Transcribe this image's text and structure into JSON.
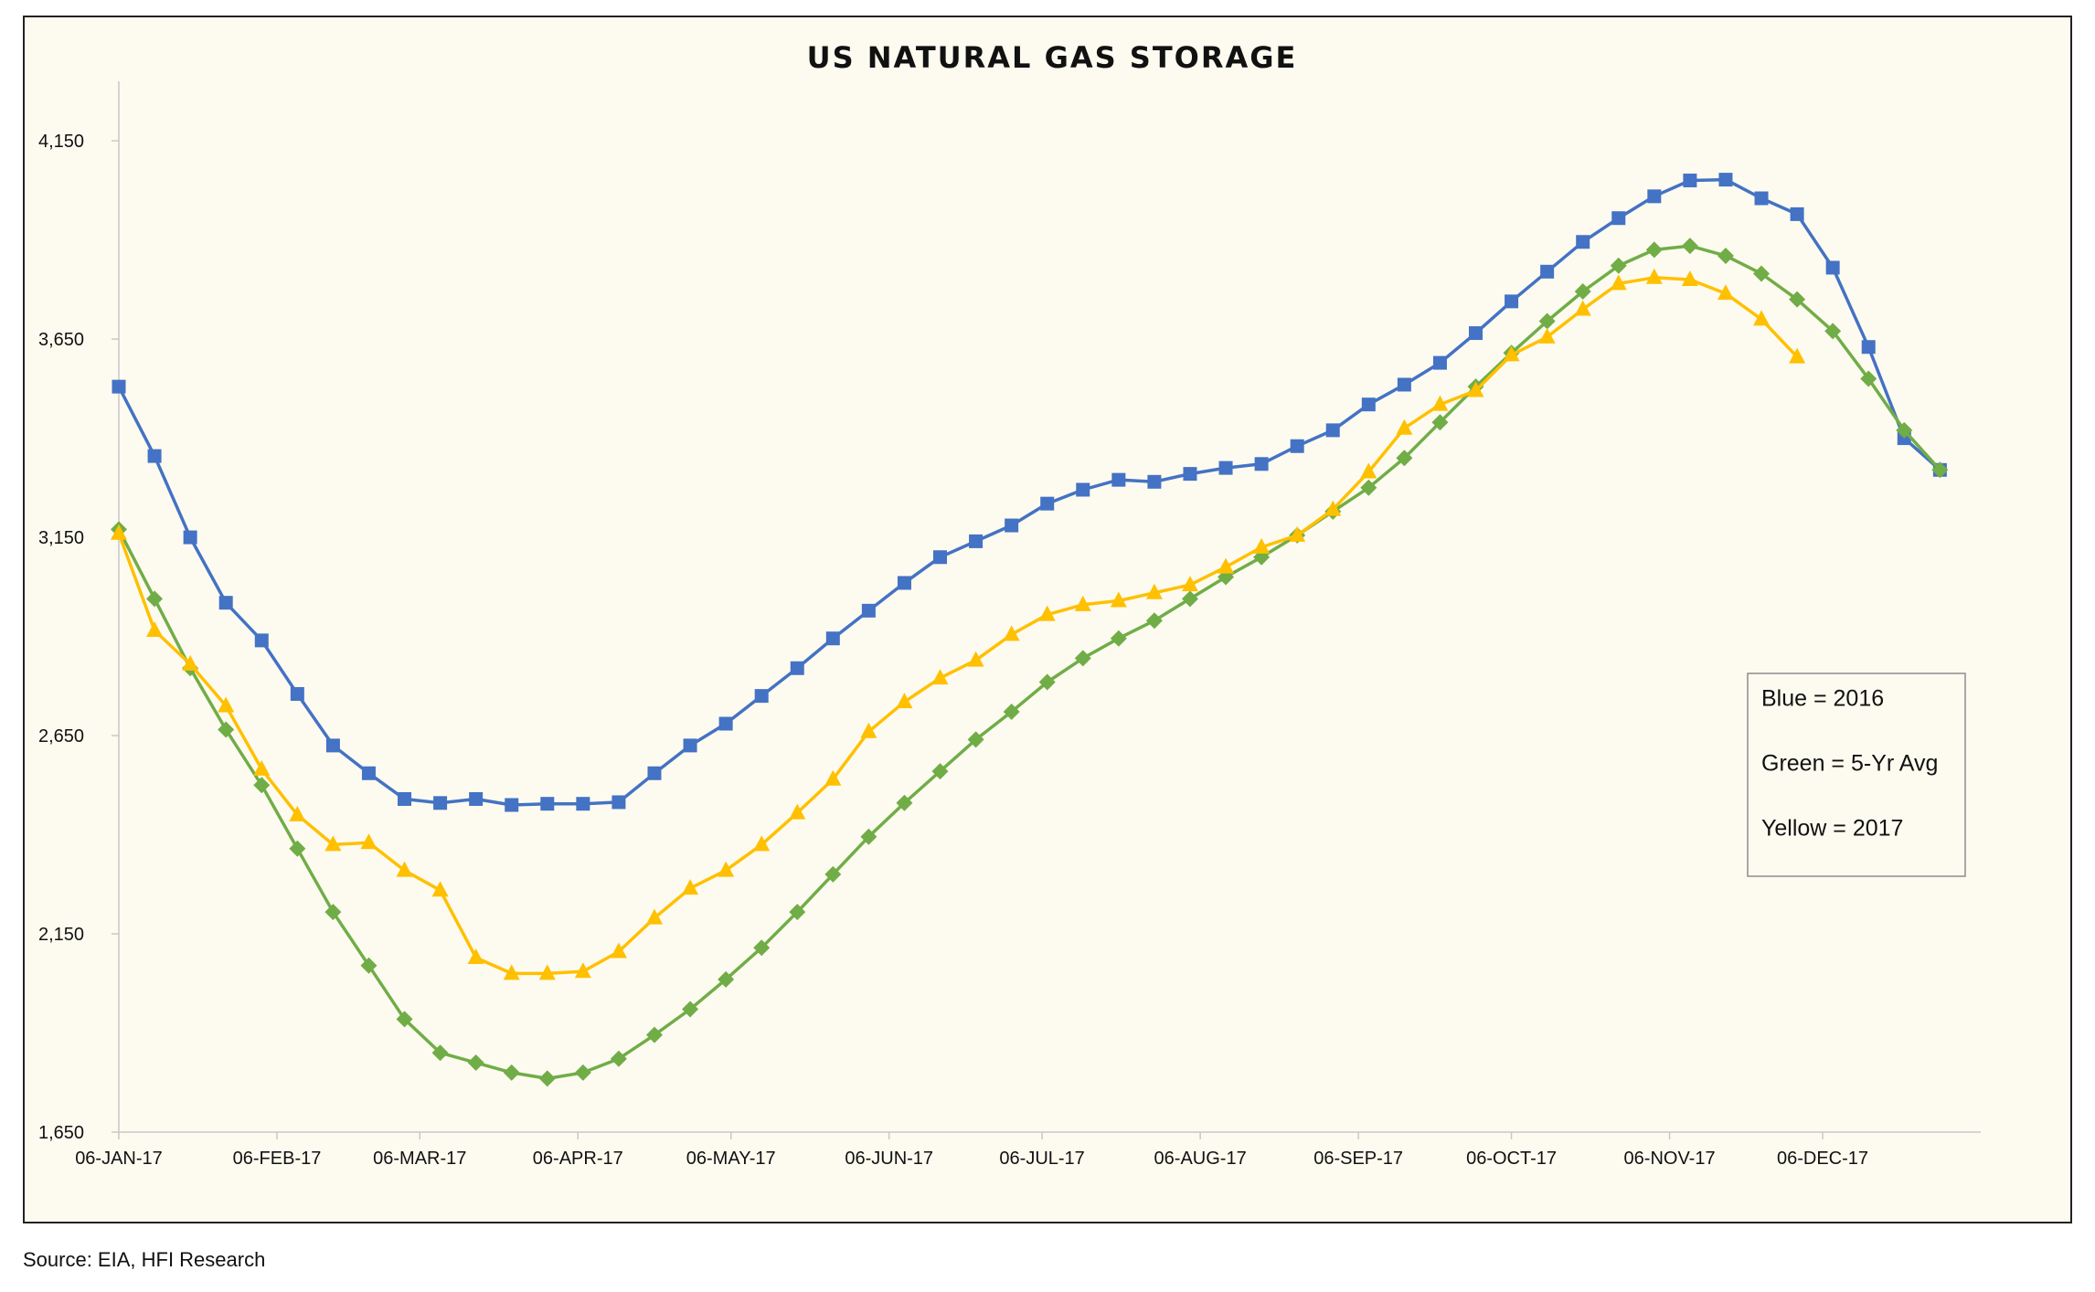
{
  "chart_data": {
    "type": "line",
    "title": "US NATURAL GAS STORAGE",
    "xlabel": "",
    "ylabel": "",
    "ylim": [
      1650,
      4300
    ],
    "yticks": [
      "1,650",
      "2,150",
      "2,650",
      "3,150",
      "3,650",
      "4,150"
    ],
    "ytick_values": [
      1650,
      2150,
      2650,
      3150,
      3650,
      4150
    ],
    "x_dates": [
      "06-JAN-17",
      "13-JAN-17",
      "20-JAN-17",
      "27-JAN-17",
      "03-FEB-17",
      "10-FEB-17",
      "17-FEB-17",
      "24-FEB-17",
      "03-MAR-17",
      "10-MAR-17",
      "17-MAR-17",
      "24-MAR-17",
      "31-MAR-17",
      "07-APR-17",
      "14-APR-17",
      "21-APR-17",
      "28-APR-17",
      "05-MAY-17",
      "12-MAY-17",
      "19-MAY-17",
      "26-MAY-17",
      "02-JUN-17",
      "09-JUN-17",
      "16-JUN-17",
      "23-JUN-17",
      "30-JUN-17",
      "07-JUL-17",
      "14-JUL-17",
      "21-JUL-17",
      "28-JUL-17",
      "04-AUG-17",
      "11-AUG-17",
      "18-AUG-17",
      "25-AUG-17",
      "01-SEP-17",
      "08-SEP-17",
      "15-SEP-17",
      "22-SEP-17",
      "29-SEP-17",
      "06-OCT-17",
      "13-OCT-17",
      "20-OCT-17",
      "27-OCT-17",
      "03-NOV-17",
      "10-NOV-17",
      "17-NOV-17",
      "24-NOV-17",
      "01-DEC-17",
      "08-DEC-17",
      "15-DEC-17",
      "22-DEC-17",
      "29-DEC-17"
    ],
    "x_start": "06-JAN-17",
    "x_end": "06-JAN-18",
    "xticks": [
      "06-JAN-17",
      "06-FEB-17",
      "06-MAR-17",
      "06-APR-17",
      "06-MAY-17",
      "06-JUN-17",
      "06-JUL-17",
      "06-AUG-17",
      "06-SEP-17",
      "06-OCT-17",
      "06-NOV-17",
      "06-DEC-17"
    ],
    "series": [
      {
        "name": "Blue = 2016",
        "color": "#4472c4",
        "marker": "square",
        "values": [
          3530,
          3355,
          3150,
          2985,
          2890,
          2755,
          2625,
          2555,
          2490,
          2480,
          2490,
          2475,
          2478,
          2478,
          2482,
          2555,
          2625,
          2680,
          2750,
          2820,
          2895,
          2965,
          3035,
          3100,
          3140,
          3180,
          3235,
          3270,
          3295,
          3290,
          3310,
          3325,
          3335,
          3380,
          3420,
          3485,
          3535,
          3590,
          3665,
          3745,
          3820,
          3895,
          3955,
          4010,
          4050,
          4052,
          4005,
          3965,
          3830,
          3630,
          3400,
          3320
        ]
      },
      {
        "name": "Green = 5-Yr Avg",
        "color": "#70ad47",
        "marker": "diamond",
        "values": [
          3170,
          2995,
          2820,
          2665,
          2525,
          2365,
          2205,
          2070,
          1935,
          1850,
          1825,
          1800,
          1785,
          1800,
          1835,
          1895,
          1960,
          2035,
          2115,
          2205,
          2300,
          2395,
          2480,
          2560,
          2640,
          2710,
          2785,
          2845,
          2895,
          2940,
          2995,
          3050,
          3100,
          3155,
          3215,
          3275,
          3350,
          3440,
          3530,
          3615,
          3695,
          3770,
          3835,
          3875,
          3885,
          3860,
          3815,
          3750,
          3670,
          3550,
          3420,
          3320
        ]
      },
      {
        "name": "Yellow = 2017",
        "color": "#ffc000",
        "marker": "triangle",
        "values": [
          3160,
          2915,
          2830,
          2725,
          2565,
          2450,
          2375,
          2380,
          2310,
          2260,
          2090,
          2050,
          2050,
          2055,
          2105,
          2190,
          2265,
          2310,
          2375,
          2455,
          2540,
          2660,
          2735,
          2795,
          2840,
          2905,
          2955,
          2980,
          2990,
          3010,
          3030,
          3075,
          3125,
          3155,
          3220,
          3315,
          3425,
          3485,
          3520,
          3610,
          3655,
          3725,
          3790,
          3805,
          3800,
          3765,
          3700,
          3605
        ]
      }
    ],
    "legend": {
      "placement": "right",
      "entries": [
        "Blue = 2016",
        "Green = 5-Yr Avg",
        "Yellow = 2017"
      ]
    },
    "grid": false
  },
  "source_note": "Source: EIA, HFI Research"
}
